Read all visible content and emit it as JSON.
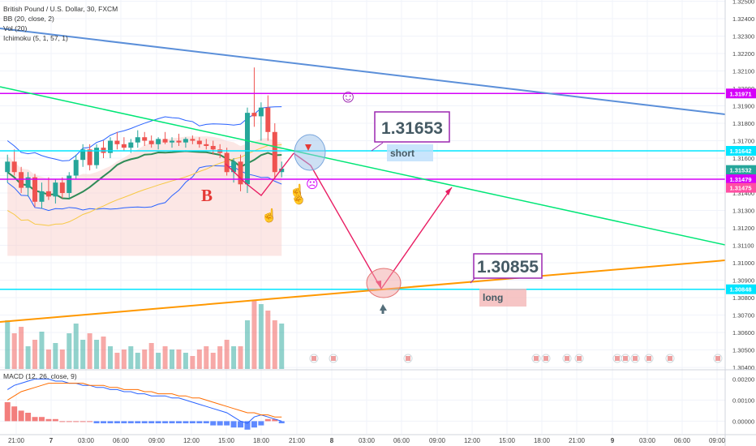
{
  "header": {
    "title": "British Pound / U.S. Dollar, 30, FXCM",
    "indicators": [
      "BB (20, close, 2)",
      "Vol (20)",
      "Ichimoku (5, 1, 57, 1)"
    ],
    "macd_label": "MACD (12, 26, close, 9)"
  },
  "colors": {
    "up": "#26a69a",
    "down": "#ef5350",
    "accent_line": "#e91e63",
    "cyan": "#00e5ff",
    "magenta": "#d500f9",
    "green": "#00e676",
    "orange": "#ff9800",
    "blue": "#5b8fd9",
    "text": "#333333"
  },
  "annotations": {
    "short_price": "1.31653",
    "short_label": "short",
    "long_price": "1.30855",
    "long_label": "long",
    "wave_label": "B",
    "smiley": "☺",
    "sad": "☹"
  },
  "chart_data": {
    "type": "candlestick",
    "title": "British Pound / U.S. Dollar, 30, FXCM",
    "ylim": [
      1.30391,
      1.32507
    ],
    "price_ticks": [
      1.325,
      1.324,
      1.323,
      1.322,
      1.321,
      1.32,
      1.319,
      1.318,
      1.317,
      1.316,
      1.315,
      1.314,
      1.313,
      1.312,
      1.311,
      1.31,
      1.309,
      1.308,
      1.307,
      1.306,
      1.305,
      1.304
    ],
    "price_tick_labels": [
      "1.32500",
      "1.32400",
      "1.32300",
      "1.32200",
      "1.32100",
      "1.32000",
      "1.31900",
      "1.31800",
      "1.31700",
      "1.31600",
      "1.31500",
      "1.31400",
      "1.31300",
      "1.31200",
      "1.31100",
      "1.31000",
      "1.30900",
      "1.30800",
      "1.30700",
      "1.30600",
      "1.30500",
      "1.30400"
    ],
    "price_badges": [
      {
        "label": "1.31971",
        "value": 1.31971,
        "color": "#d500f9"
      },
      {
        "label": "1.31642",
        "value": 1.31642,
        "color": "#00e5ff"
      },
      {
        "label": "1.31532",
        "value": 1.31532,
        "color": "#26a69a"
      },
      {
        "label": "05:45",
        "value": 1.3149,
        "color": "#26a69a"
      },
      {
        "label": "1.31479",
        "value": 1.31479,
        "color": "#d500f9"
      },
      {
        "label": "1.31475",
        "value": 1.3143,
        "color": "#ff4fa3"
      },
      {
        "label": "1.30848",
        "value": 1.30848,
        "color": "#00e5ff"
      }
    ],
    "x_ticks": [
      "21:00",
      "7",
      "03:00",
      "06:00",
      "09:00",
      "12:00",
      "15:00",
      "18:00",
      "21:00",
      "8",
      "03:00",
      "06:00",
      "09:00",
      "12:00",
      "15:00",
      "18:00",
      "21:00",
      "9",
      "03:00",
      "06:00",
      "09:00"
    ],
    "horizontal_lines": [
      {
        "value": 1.31971,
        "color": "#d500f9"
      },
      {
        "value": 1.31642,
        "color": "#00e5ff"
      },
      {
        "value": 1.31479,
        "color": "#d500f9"
      },
      {
        "value": 1.30848,
        "color": "#00e5ff"
      }
    ],
    "candles": [
      [
        1.3152,
        1.3162,
        1.3146,
        1.3158
      ],
      [
        1.3158,
        1.3165,
        1.315,
        1.3152
      ],
      [
        1.3152,
        1.3155,
        1.314,
        1.3143
      ],
      [
        1.3143,
        1.3152,
        1.3138,
        1.3149
      ],
      [
        1.3149,
        1.3151,
        1.3132,
        1.3135
      ],
      [
        1.3135,
        1.3146,
        1.3131,
        1.3141
      ],
      [
        1.3141,
        1.3149,
        1.3136,
        1.3138
      ],
      [
        1.3138,
        1.3148,
        1.3134,
        1.3146
      ],
      [
        1.3146,
        1.3149,
        1.3137,
        1.314
      ],
      [
        1.314,
        1.3152,
        1.3137,
        1.315
      ],
      [
        1.315,
        1.3162,
        1.3148,
        1.3159
      ],
      [
        1.3159,
        1.3168,
        1.3155,
        1.3165
      ],
      [
        1.3165,
        1.3168,
        1.3153,
        1.3156
      ],
      [
        1.3156,
        1.3168,
        1.3154,
        1.3166
      ],
      [
        1.3166,
        1.317,
        1.316,
        1.3163
      ],
      [
        1.3163,
        1.3172,
        1.316,
        1.317
      ],
      [
        1.317,
        1.3175,
        1.3165,
        1.3168
      ],
      [
        1.3168,
        1.3172,
        1.3164,
        1.3166
      ],
      [
        1.3166,
        1.3171,
        1.3163,
        1.3169
      ],
      [
        1.3169,
        1.3176,
        1.3166,
        1.3172
      ],
      [
        1.3172,
        1.3175,
        1.3167,
        1.317
      ],
      [
        1.317,
        1.3173,
        1.3166,
        1.3168
      ],
      [
        1.3168,
        1.3172,
        1.3165,
        1.3171
      ],
      [
        1.3171,
        1.3175,
        1.3168,
        1.3169
      ],
      [
        1.3169,
        1.3172,
        1.3166,
        1.317
      ],
      [
        1.317,
        1.3174,
        1.3167,
        1.3169
      ],
      [
        1.3169,
        1.3172,
        1.3166,
        1.3171
      ],
      [
        1.3171,
        1.3173,
        1.3168,
        1.317
      ],
      [
        1.317,
        1.3172,
        1.3166,
        1.3168
      ],
      [
        1.3168,
        1.3171,
        1.3165,
        1.3167
      ],
      [
        1.3167,
        1.317,
        1.3162,
        1.3165
      ],
      [
        1.3165,
        1.3168,
        1.316,
        1.3163
      ],
      [
        1.3163,
        1.3166,
        1.315,
        1.3152
      ],
      [
        1.3152,
        1.316,
        1.3146,
        1.3158
      ],
      [
        1.3158,
        1.3162,
        1.3141,
        1.3145
      ],
      [
        1.3145,
        1.3189,
        1.314,
        1.3186
      ],
      [
        1.3186,
        1.3212,
        1.3178,
        1.3184
      ],
      [
        1.3184,
        1.3192,
        1.317,
        1.3189
      ],
      [
        1.3189,
        1.3196,
        1.317,
        1.3175
      ],
      [
        1.3175,
        1.318,
        1.3148,
        1.3152
      ],
      [
        1.3152,
        1.3158,
        1.3149,
        1.3154
      ]
    ],
    "volume": [
      30,
      22,
      26,
      14,
      18,
      23,
      12,
      16,
      12,
      22,
      28,
      18,
      22,
      18,
      20,
      14,
      10,
      12,
      14,
      10,
      12,
      16,
      10,
      14,
      12,
      12,
      10,
      8,
      12,
      14,
      10,
      14,
      18,
      14,
      14,
      30,
      42,
      40,
      36,
      30,
      28
    ],
    "macd": {
      "ylim": [
        -0.0006,
        0.0024
      ],
      "ticks": [
        0.002,
        0.001,
        0.0
      ],
      "tick_labels": [
        "0.00200",
        "0.00100",
        "0.00000"
      ],
      "histogram": [
        0.0009,
        0.0007,
        0.0005,
        0.0004,
        0.0002,
        0.0002,
        0.0001,
        0.0001,
        0.0,
        0.0,
        0.0,
        0.0,
        0.0,
        -0.0001,
        -0.0001,
        -0.0001,
        -0.0001,
        -0.0001,
        -0.0001,
        -0.0001,
        -0.0001,
        -0.0001,
        -0.0001,
        -0.0001,
        -0.0001,
        -0.0001,
        -0.0001,
        -0.0001,
        -0.0001,
        -0.0001,
        -0.0002,
        -0.0002,
        -0.0002,
        -0.0003,
        -0.0003,
        -0.0004,
        -0.0003,
        -0.0002,
        0.0001,
        0.0001,
        -0.0001
      ],
      "macd_line": [
        0.0015,
        0.0017,
        0.0018,
        0.0019,
        0.002,
        0.002,
        0.002,
        0.0019,
        0.0019,
        0.0018,
        0.0018,
        0.0017,
        0.0017,
        0.0016,
        0.0016,
        0.0015,
        0.0015,
        0.0014,
        0.0014,
        0.0013,
        0.0013,
        0.0012,
        0.0012,
        0.0012,
        0.0011,
        0.0011,
        0.001,
        0.0009,
        0.0008,
        0.0007,
        0.0006,
        0.0005,
        0.0004,
        0.0002,
        0.0,
        -0.0001,
        0.0002,
        0.0003,
        0.0002,
        0.0001,
        0.0
      ],
      "signal_line": [
        0.001,
        0.0012,
        0.0014,
        0.0015,
        0.0016,
        0.0017,
        0.0018,
        0.0018,
        0.0018,
        0.0018,
        0.0018,
        0.0018,
        0.0017,
        0.0017,
        0.0017,
        0.0016,
        0.0016,
        0.0015,
        0.0015,
        0.0015,
        0.0014,
        0.0014,
        0.0013,
        0.0013,
        0.0013,
        0.0012,
        0.0012,
        0.0011,
        0.0011,
        0.001,
        0.0009,
        0.0008,
        0.0007,
        0.0006,
        0.0005,
        0.0004,
        0.0004,
        0.0003,
        0.0003,
        0.0002,
        0.0002
      ]
    }
  }
}
